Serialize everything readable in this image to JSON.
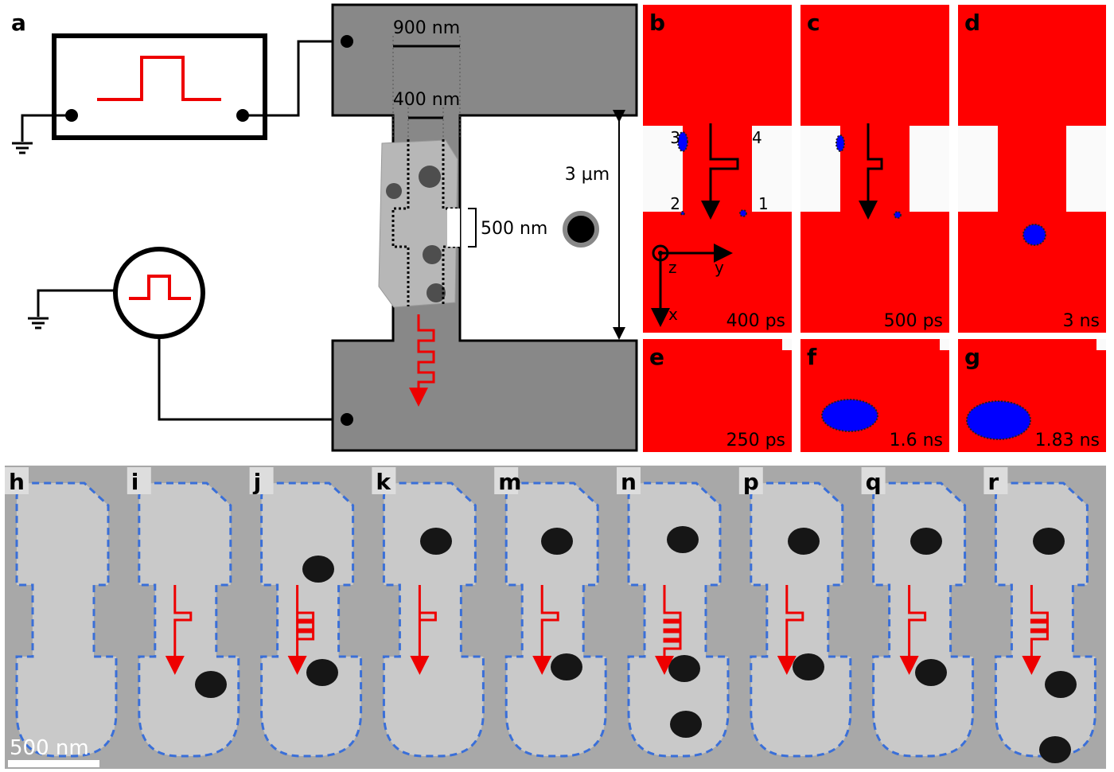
{
  "panel_a": {
    "label": "a",
    "width_top": "900 nm",
    "width_wire": "400 nm",
    "length": "3 µm",
    "notch": "500 nm"
  },
  "simulation_panels": [
    {
      "label": "b",
      "time": "400 ps"
    },
    {
      "label": "c",
      "time": "500 ps"
    },
    {
      "label": "d",
      "time": "3 ns"
    },
    {
      "label": "e",
      "time": "250 ps"
    },
    {
      "label": "f",
      "time": "1.6 ns"
    },
    {
      "label": "g",
      "time": "1.83 ns"
    }
  ],
  "contact_labels": [
    "1",
    "2",
    "3",
    "4"
  ],
  "axis_labels": {
    "z": "z",
    "y": "y",
    "x": "x"
  },
  "image_panels": [
    "h",
    "i",
    "j",
    "k",
    "m",
    "n",
    "p",
    "q",
    "r"
  ],
  "scale_bar": "500 nm"
}
